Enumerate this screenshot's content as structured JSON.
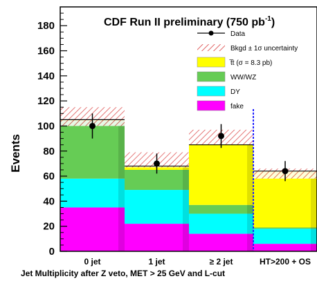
{
  "chart_data": {
    "type": "bar",
    "stacked": true,
    "title_main": "CDF Run II preliminary (750 pb",
    "title_sup": "-1",
    "title_end": ")",
    "xlabel": "Jet Multiplicity after Z veto, MET > 25 GeV and L-cut",
    "ylabel": "Events",
    "ylim": [
      0,
      195
    ],
    "yticks": [
      "0",
      "20",
      "40",
      "60",
      "80",
      "100",
      "120",
      "140",
      "160",
      "180"
    ],
    "categories": [
      "0 jet",
      "1 jet",
      "≥ 2 jet",
      "HT>200 + OS"
    ],
    "series": [
      {
        "name": "fake",
        "color": "#ff00ff",
        "values": [
          35,
          22,
          14,
          6
        ]
      },
      {
        "name": "DY",
        "color": "#00ffff",
        "values": [
          23,
          27,
          16,
          12
        ]
      },
      {
        "name": "WW/WZ",
        "color": "#66cc55",
        "values": [
          46,
          16,
          7,
          1
        ]
      },
      {
        "name": "t̅t (σ = 8.3 pb)",
        "color": "#ffff00",
        "values": [
          1,
          3,
          48,
          45
        ]
      }
    ],
    "background_uncertainty": {
      "name": "Bkgd ± 1σ uncertainty",
      "upper": [
        115,
        79,
        97,
        66
      ],
      "lower": [
        100,
        67,
        85,
        58
      ]
    },
    "data": {
      "name": "Data",
      "values": [
        100,
        70,
        92,
        64
      ],
      "errors": [
        10,
        8,
        9.5,
        8
      ]
    },
    "legend_position": "top-right",
    "grid": false
  }
}
